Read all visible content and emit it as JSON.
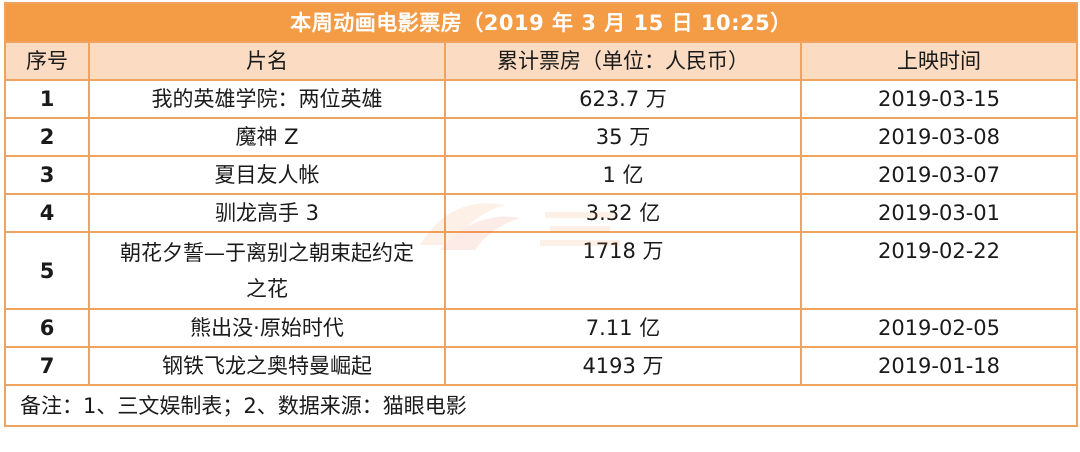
{
  "title": "本周动画电影票房（2019 年 3 月 15 日 10:25）",
  "headers": [
    "序号",
    "片名",
    "累计票房（单位：人民币）",
    "上映时间"
  ],
  "rows": [
    {
      "rank": "1",
      "name": "我的英雄学院：两位英雄",
      "box_office": "623.7 万",
      "release_date": "2019-03-15"
    },
    {
      "rank": "2",
      "name": "魔神 Z",
      "box_office": "35 万",
      "release_date": "2019-03-08"
    },
    {
      "rank": "3",
      "name": "夏目友人帐",
      "box_office": "1 亿",
      "release_date": "2019-03-07"
    },
    {
      "rank": "4",
      "name": "驯龙高手 3",
      "box_office": "3.32 亿",
      "release_date": "2019-03-01"
    },
    {
      "rank": "5",
      "name": "朝花夕誓—于离别之朝束起约定之花",
      "box_office": "1718 万",
      "release_date": "2019-02-22"
    },
    {
      "rank": "6",
      "name": "熊出没·原始时代",
      "box_office": "7.11 亿",
      "release_date": "2019-02-05"
    },
    {
      "rank": "7",
      "name": "钢铁飞龙之奥特曼崛起",
      "box_office": "4193 万",
      "release_date": "2019-01-18"
    }
  ],
  "note": "备注：1、三文娱制表；2、数据来源：猫眼电影",
  "colors": {
    "title_bg": "#f39b45",
    "header_bg": "#fbdcc2",
    "border": "#f0a35e"
  }
}
